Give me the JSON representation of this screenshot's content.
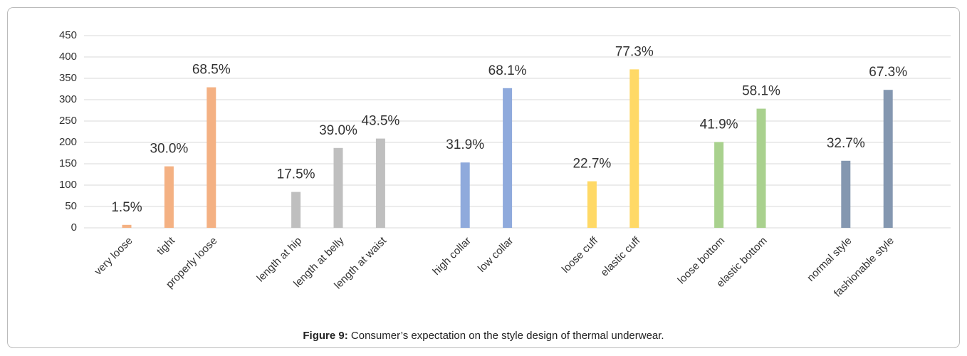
{
  "chart_data": {
    "type": "bar",
    "categories": [
      "very loose",
      "tight",
      "properly loose",
      null,
      "length at hip",
      "length at belly",
      "length at waist",
      null,
      "high collar",
      "low collar",
      null,
      "loose cuff",
      "elastic cuff",
      null,
      "loose bottom",
      "elastic bottom",
      null,
      "normal style",
      "fashionable style"
    ],
    "values": [
      7,
      144,
      329,
      null,
      84,
      187,
      209,
      null,
      153,
      327,
      null,
      109,
      371,
      null,
      201,
      279,
      null,
      157,
      323
    ],
    "value_labels": [
      "1.5%",
      "30.0%",
      "68.5%",
      null,
      "17.5%",
      "39.0%",
      "43.5%",
      null,
      "31.9%",
      "68.1%",
      null,
      "22.7%",
      "77.3%",
      null,
      "41.9%",
      "58.1%",
      null,
      "32.7%",
      "67.3%"
    ],
    "colors": [
      "#f4b183",
      "#f4b183",
      "#f4b183",
      null,
      "#bfbfbf",
      "#bfbfbf",
      "#bfbfbf",
      null,
      "#8faadc",
      "#8faadc",
      null,
      "#ffd966",
      "#ffd966",
      null,
      "#a9d18e",
      "#a9d18e",
      null,
      "#8497b0",
      "#8497b0"
    ],
    "ylim": [
      0,
      450
    ],
    "yticks": [
      0,
      50,
      100,
      150,
      200,
      250,
      300,
      350,
      400,
      450
    ],
    "grid": true
  },
  "caption": {
    "label": "Figure 9:",
    "text": " Consumer’s expectation on the style design of thermal underwear."
  }
}
